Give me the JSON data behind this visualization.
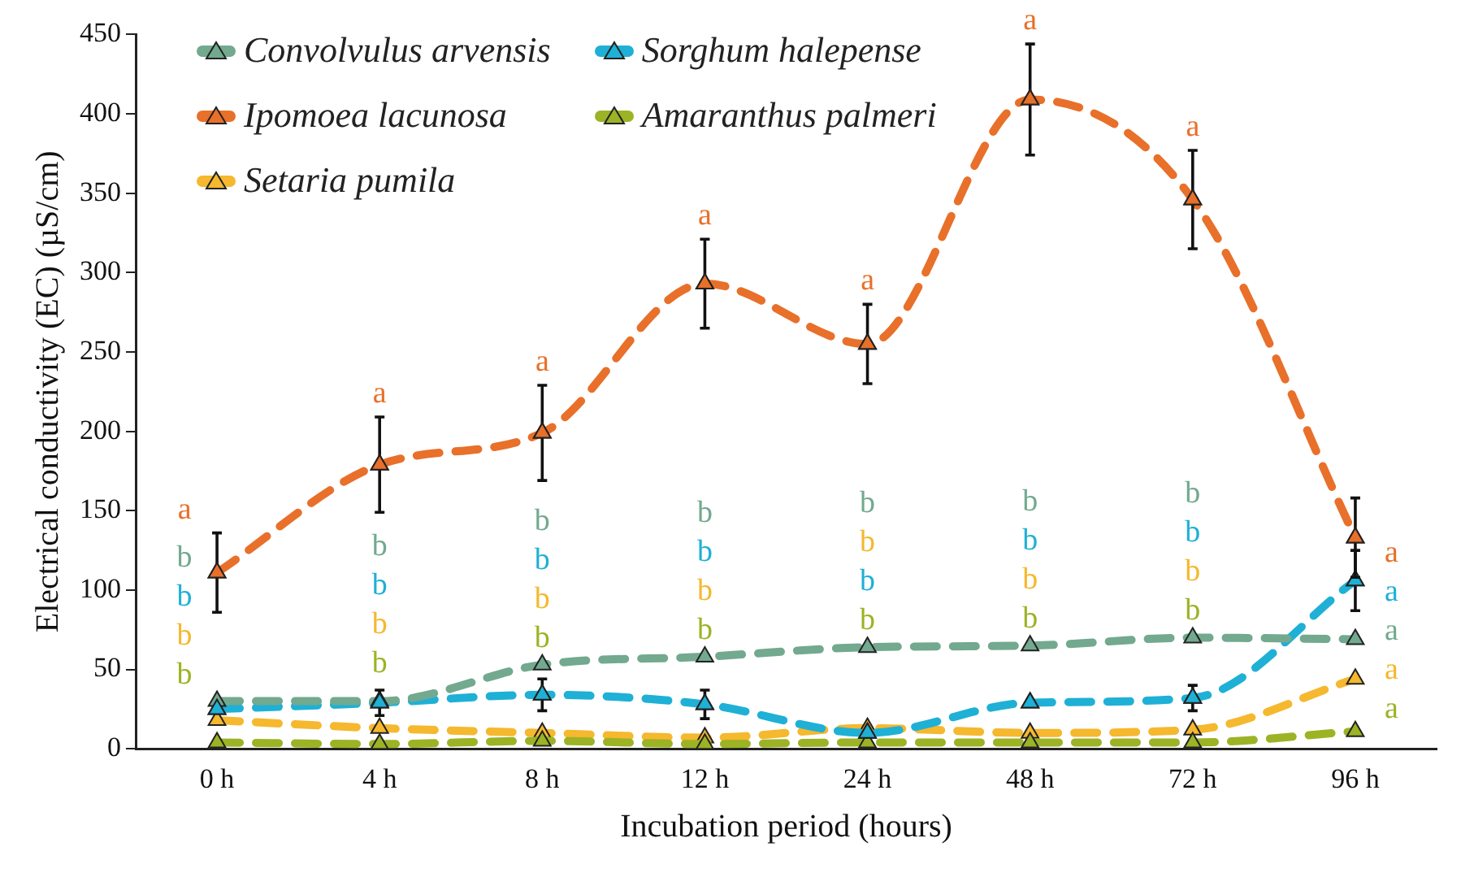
{
  "chart_data": {
    "type": "line",
    "xlabel": "Incubation period (hours)",
    "ylabel": "Electrical conductivity (EC) (µS/cm)",
    "categories": [
      "0 h",
      "4 h",
      "8 h",
      "12 h",
      "24 h",
      "48 h",
      "72 h",
      "96 h"
    ],
    "ylim": [
      0,
      450
    ],
    "yticks": [
      0,
      50,
      100,
      150,
      200,
      250,
      300,
      350,
      400,
      450
    ],
    "legend": "top left",
    "marker": "triangle",
    "line_style": "dashed",
    "series": [
      {
        "name": "Convolvulus arvensis",
        "color": "#72a98f",
        "values": [
          30,
          30,
          53,
          58,
          64,
          65,
          70,
          69
        ],
        "value_labels": [
          null,
          null,
          null,
          null,
          null,
          null,
          null,
          "a"
        ]
      },
      {
        "name": "Sorghum halepense",
        "color": "#1fb0d6",
        "values": [
          25,
          29,
          34,
          28,
          10,
          29,
          32,
          106
        ],
        "errors": [
          null,
          8,
          10,
          9,
          null,
          null,
          8,
          19
        ],
        "value_labels": [
          null,
          null,
          null,
          null,
          null,
          null,
          null,
          "a"
        ]
      },
      {
        "name": "Ipomoea lacunosa",
        "color": "#e8702a",
        "values": [
          111,
          179,
          199,
          293,
          255,
          409,
          346,
          133
        ],
        "errors": [
          25,
          30,
          30,
          28,
          25,
          35,
          31,
          25
        ],
        "value_labels": [
          "a",
          "a",
          "a",
          "a",
          "a",
          "a",
          "a",
          "a"
        ]
      },
      {
        "name": "Amaranthus palmeri",
        "color": "#9cb325",
        "values": [
          4,
          3,
          5,
          3,
          4,
          4,
          4,
          11
        ],
        "value_labels": [
          null,
          null,
          null,
          null,
          null,
          null,
          null,
          "a"
        ]
      },
      {
        "name": "Setaria pumila",
        "color": "#f5b82e",
        "values": [
          18,
          13,
          10,
          7,
          13,
          10,
          12,
          44
        ],
        "value_labels": [
          null,
          null,
          null,
          null,
          null,
          null,
          null,
          "a"
        ]
      }
    ],
    "annotations": [
      "b",
      "b",
      "b",
      "b",
      "b",
      "b",
      "b",
      "b",
      "b",
      "b",
      "b",
      "b",
      "b",
      "b",
      "b",
      "b",
      "b",
      "b",
      "b",
      "b",
      "b",
      "b",
      "b",
      "b",
      "b",
      "b",
      "b",
      "b"
    ]
  }
}
